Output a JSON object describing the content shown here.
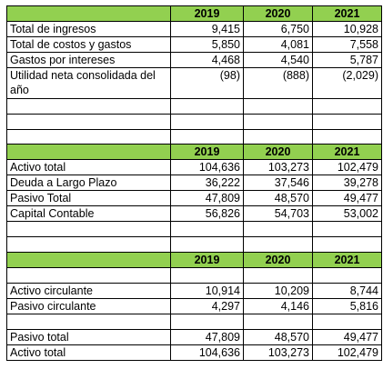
{
  "sections": [
    {
      "years": [
        "2019",
        "2020",
        "2021"
      ],
      "rows": [
        {
          "label": "Total de ingresos",
          "values": [
            "9,415",
            "6,750",
            "10,928"
          ]
        },
        {
          "label": "Total de costos y gastos",
          "values": [
            "5,850",
            "4,081",
            "7,558"
          ]
        },
        {
          "label": "Gastos por intereses",
          "values": [
            "4,468",
            "4,540",
            "5,787"
          ]
        },
        {
          "label": "Utilidad neta consolidada del año",
          "values": [
            "(98)",
            "(888)",
            "(2,029)"
          ],
          "tall": true
        },
        {
          "label": "",
          "values": [
            "",
            "",
            ""
          ]
        },
        {
          "label": "",
          "values": [
            "",
            "",
            ""
          ]
        },
        {
          "label": "",
          "values": [
            "",
            "",
            ""
          ]
        }
      ]
    },
    {
      "years": [
        "2019",
        "2020",
        "2021"
      ],
      "rows": [
        {
          "label": "Activo total",
          "values": [
            "104,636",
            "103,273",
            "102,479"
          ]
        },
        {
          "label": "Deuda a Largo Plazo",
          "values": [
            "36,222",
            "37,546",
            "39,278"
          ]
        },
        {
          "label": "Pasivo Total",
          "values": [
            "47,809",
            "48,570",
            "49,477"
          ]
        },
        {
          "label": "Capital Contable",
          "values": [
            "56,826",
            "54,703",
            "53,002"
          ]
        },
        {
          "label": "",
          "values": [
            "",
            "",
            ""
          ]
        },
        {
          "label": "",
          "values": [
            "",
            "",
            ""
          ]
        }
      ]
    },
    {
      "years": [
        "2019",
        "2020",
        "2021"
      ],
      "rows": [
        {
          "label": "",
          "values": [
            "",
            "",
            ""
          ]
        },
        {
          "label": "Activo circulante",
          "values": [
            "10,914",
            "10,209",
            "8,744"
          ]
        },
        {
          "label": "Pasivo circulante",
          "values": [
            "4,297",
            "4,146",
            "5,816"
          ]
        },
        {
          "label": "",
          "values": [
            "",
            "",
            ""
          ]
        },
        {
          "label": "Pasivo total",
          "values": [
            "47,809",
            "48,570",
            "49,477"
          ]
        },
        {
          "label": "Activo total",
          "values": [
            "104,636",
            "103,273",
            "102,479"
          ]
        }
      ]
    }
  ],
  "colors": {
    "header_fill": "#92d050",
    "grid": "#000000"
  }
}
